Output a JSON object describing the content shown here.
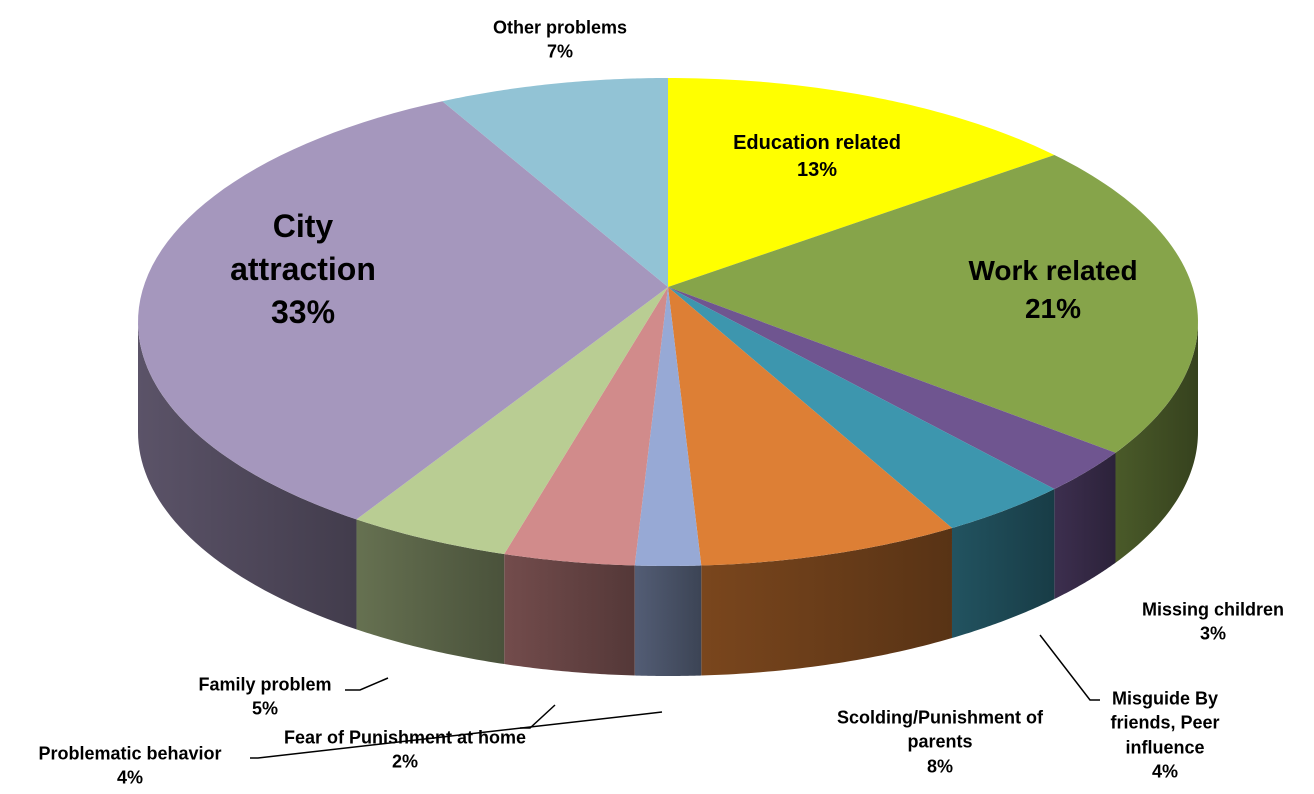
{
  "chart_data": {
    "type": "pie",
    "categories": [
      "Education related",
      "Work related",
      "Missing children",
      "Misguide By friends, Peer influence",
      "Scolding/Punishment of parents",
      "Fear of Punishment at home",
      "Problematic behavior",
      "Family problem",
      "City attraction",
      "Other problems"
    ],
    "values": [
      13,
      21,
      3,
      4,
      8,
      2,
      4,
      5,
      33,
      7
    ],
    "value_labels": [
      "13%",
      "21%",
      "3%",
      "4%",
      "8%",
      "2%",
      "4%",
      "5%",
      "33%",
      "7%"
    ],
    "colors": [
      "#ffff00",
      "#86a44a",
      "#6f5590",
      "#3d96ae",
      "#dd7f35",
      "#97a9d5",
      "#d18b8b",
      "#b9cd93",
      "#a597bd",
      "#92c3d5"
    ]
  }
}
